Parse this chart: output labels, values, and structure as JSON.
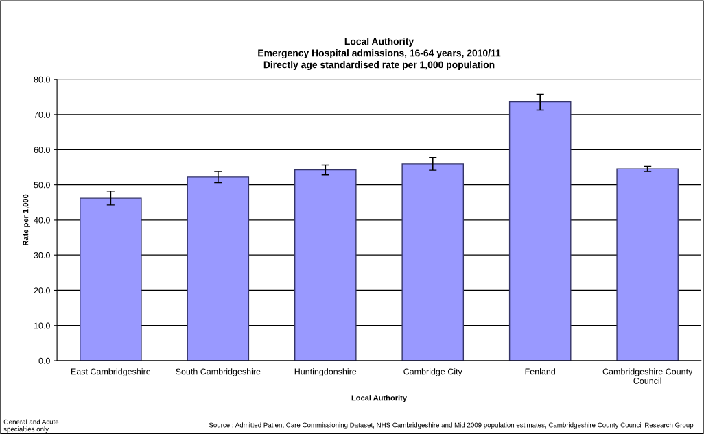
{
  "chart_data": {
    "type": "bar",
    "title": "Local Authority\nEmergency Hospital admissions, 16-64 years, 2010/11\nDirectly age standardised rate per 1,000 population",
    "xlabel": "Local Authority",
    "ylabel": "Rate per 1,000",
    "categories": [
      "East Cambridgeshire",
      "South Cambridgeshire",
      "Huntingdonshire",
      "Cambridge City",
      "Fenland",
      "Cambridgeshire County\nCouncil"
    ],
    "values": [
      46.2,
      52.3,
      54.3,
      56.0,
      73.6,
      54.6
    ],
    "errors": [
      [
        44.3,
        48.2
      ],
      [
        50.6,
        53.8
      ],
      [
        52.9,
        55.7
      ],
      [
        54.2,
        57.8
      ],
      [
        71.3,
        75.8
      ],
      [
        53.8,
        55.3
      ]
    ],
    "color": "#9999ff",
    "ylim": [
      0,
      80
    ],
    "yticks": [
      {
        "value": 0,
        "label": "0.0"
      },
      {
        "value": 10,
        "label": "10.0"
      },
      {
        "value": 20,
        "label": "20.0"
      },
      {
        "value": 30,
        "label": "30.0"
      },
      {
        "value": 40,
        "label": "40.0"
      },
      {
        "value": 50,
        "label": "50.0"
      },
      {
        "value": 60,
        "label": "60.0"
      },
      {
        "value": 70,
        "label": "70.0"
      },
      {
        "value": 80,
        "label": "80.0"
      }
    ],
    "grid": "y",
    "annotations": [
      "General and Acute\nspecialties only",
      "Source : Admitted Patient Care Commissioning Dataset, NHS Cambridgeshire and Mid 2009 population estimates, Cambridgeshire County Council Research Group"
    ]
  }
}
